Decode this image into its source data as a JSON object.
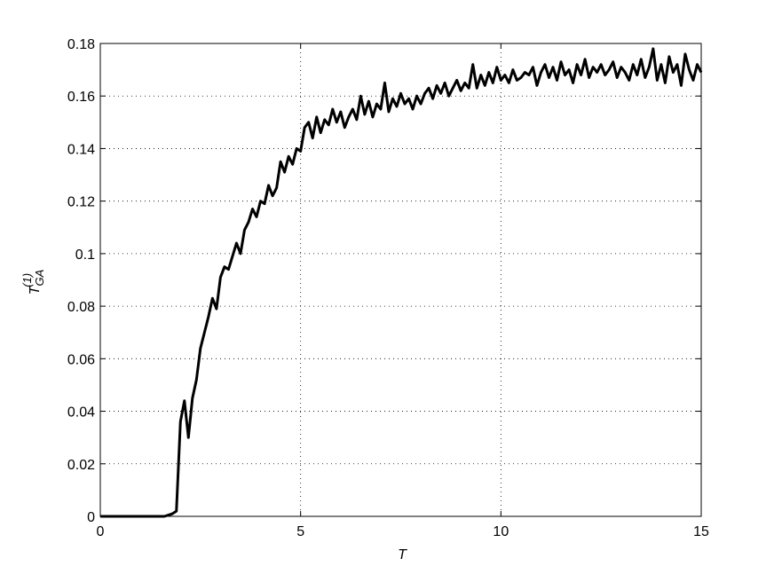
{
  "chart_data": {
    "type": "line",
    "xlabel": "T",
    "ylabel": {
      "base": "T",
      "sub": "GA",
      "sup": "(1)"
    },
    "x": [
      0,
      0.1,
      0.2,
      0.3,
      0.4,
      0.5,
      0.6,
      0.7,
      0.8,
      0.9,
      1,
      1.1,
      1.2,
      1.3,
      1.4,
      1.5,
      1.6,
      1.7,
      1.8,
      1.9,
      2,
      2.1,
      2.2,
      2.3,
      2.4,
      2.5,
      2.6,
      2.7,
      2.8,
      2.9,
      3,
      3.1,
      3.2,
      3.3,
      3.4,
      3.5,
      3.6,
      3.7,
      3.8,
      3.9,
      4,
      4.1,
      4.2,
      4.3,
      4.4,
      4.5,
      4.6,
      4.7,
      4.8,
      4.9,
      5,
      5.1,
      5.2,
      5.3,
      5.4,
      5.5,
      5.6,
      5.7,
      5.8,
      5.9,
      6,
      6.1,
      6.2,
      6.3,
      6.4,
      6.5,
      6.6,
      6.7,
      6.8,
      6.9,
      7,
      7.1,
      7.2,
      7.3,
      7.4,
      7.5,
      7.6,
      7.7,
      7.8,
      7.9,
      8,
      8.1,
      8.2,
      8.3,
      8.4,
      8.5,
      8.6,
      8.7,
      8.8,
      8.9,
      9,
      9.1,
      9.2,
      9.3,
      9.4,
      9.5,
      9.6,
      9.7,
      9.8,
      9.9,
      10,
      10.1,
      10.2,
      10.3,
      10.4,
      10.5,
      10.6,
      10.7,
      10.8,
      10.9,
      11,
      11.1,
      11.2,
      11.3,
      11.4,
      11.5,
      11.6,
      11.7,
      11.8,
      11.9,
      12,
      12.1,
      12.2,
      12.3,
      12.4,
      12.5,
      12.6,
      12.7,
      12.8,
      12.9,
      13,
      13.1,
      13.2,
      13.3,
      13.4,
      13.5,
      13.6,
      13.7,
      13.8,
      13.9,
      14,
      14.1,
      14.2,
      14.3,
      14.4,
      14.5,
      14.6,
      14.7,
      14.8,
      14.9,
      15
    ],
    "series": [
      {
        "color": "#000000",
        "values": [
          0,
          0,
          0,
          0,
          0,
          0,
          0,
          0,
          0,
          0,
          0,
          0,
          0,
          0,
          0,
          0,
          0,
          0.0005,
          0.001,
          0.002,
          0.036,
          0.044,
          0.03,
          0.045,
          0.052,
          0.064,
          0.07,
          0.076,
          0.083,
          0.079,
          0.091,
          0.095,
          0.094,
          0.099,
          0.104,
          0.1,
          0.109,
          0.112,
          0.117,
          0.114,
          0.12,
          0.119,
          0.126,
          0.122,
          0.125,
          0.135,
          0.131,
          0.137,
          0.134,
          0.14,
          0.139,
          0.148,
          0.15,
          0.144,
          0.152,
          0.146,
          0.151,
          0.149,
          0.155,
          0.15,
          0.154,
          0.148,
          0.152,
          0.155,
          0.151,
          0.16,
          0.153,
          0.158,
          0.152,
          0.157,
          0.155,
          0.165,
          0.154,
          0.159,
          0.156,
          0.161,
          0.157,
          0.159,
          0.155,
          0.16,
          0.157,
          0.161,
          0.163,
          0.159,
          0.164,
          0.161,
          0.165,
          0.16,
          0.163,
          0.166,
          0.162,
          0.165,
          0.163,
          0.172,
          0.163,
          0.168,
          0.164,
          0.169,
          0.165,
          0.171,
          0.166,
          0.168,
          0.165,
          0.17,
          0.166,
          0.167,
          0.169,
          0.168,
          0.171,
          0.164,
          0.169,
          0.172,
          0.167,
          0.171,
          0.166,
          0.173,
          0.168,
          0.17,
          0.165,
          0.172,
          0.168,
          0.174,
          0.167,
          0.171,
          0.169,
          0.172,
          0.168,
          0.17,
          0.173,
          0.167,
          0.171,
          0.169,
          0.166,
          0.172,
          0.168,
          0.174,
          0.167,
          0.171,
          0.178,
          0.166,
          0.172,
          0.165,
          0.175,
          0.169,
          0.172,
          0.164,
          0.176,
          0.17,
          0.166,
          0.172,
          0.169
        ]
      }
    ],
    "xlim": [
      0,
      15
    ],
    "xticks": [
      0,
      5,
      10,
      15
    ],
    "ylim": [
      0,
      0.18
    ],
    "yticks": [
      0,
      0.02,
      0.04,
      0.06,
      0.08,
      0.1,
      0.12,
      0.14,
      0.16,
      0.18
    ],
    "grid": true
  }
}
